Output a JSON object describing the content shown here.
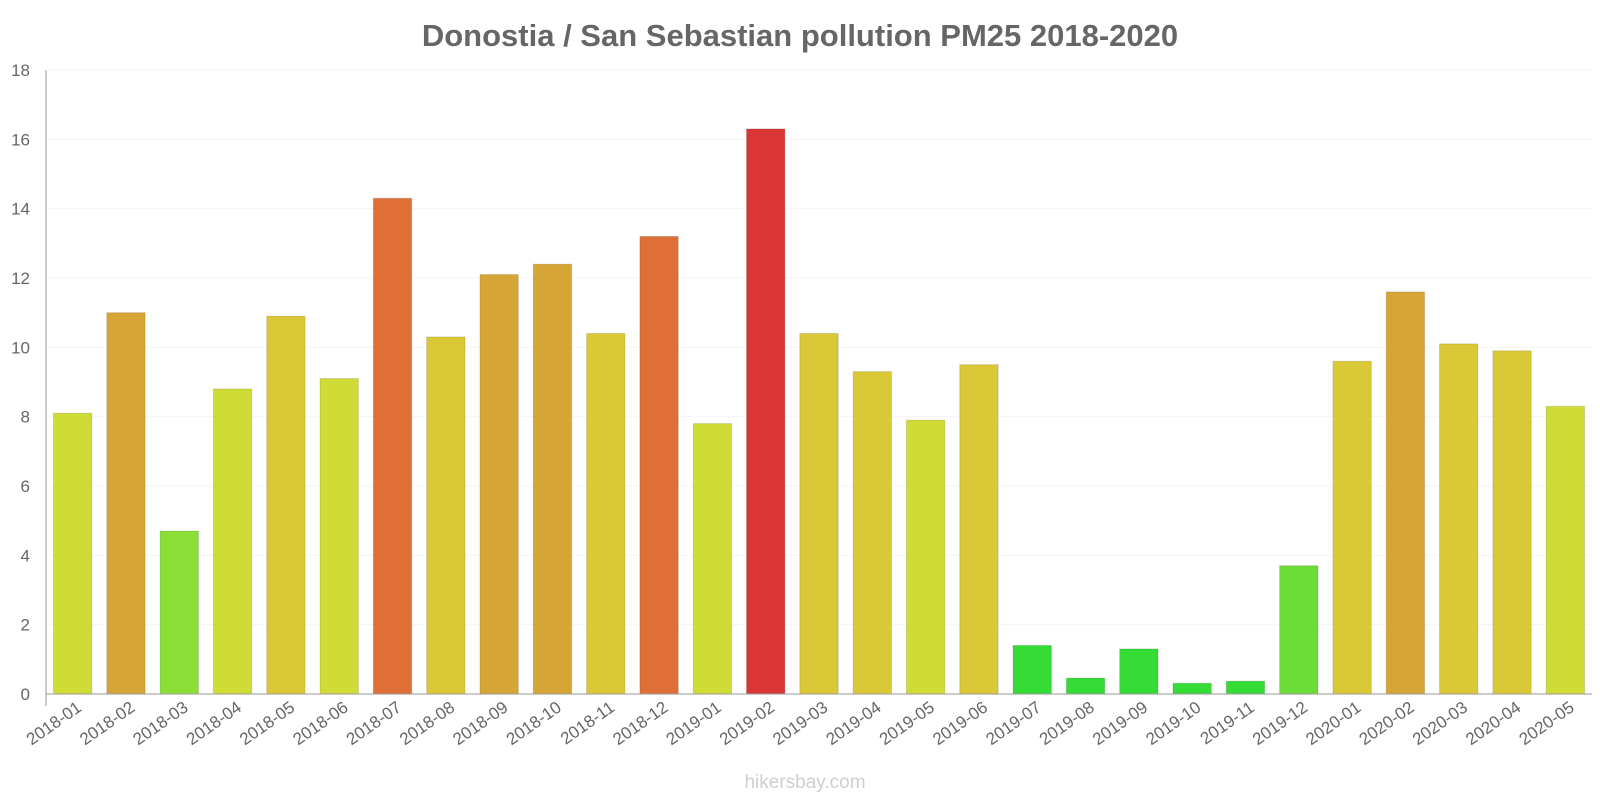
{
  "chart_data": {
    "type": "bar",
    "title": "Donostia / San Sebastian pollution PM25 2018-2020",
    "xlabel": "",
    "ylabel": "",
    "ylim": [
      0,
      18
    ],
    "yticks": [
      0,
      2,
      4,
      6,
      8,
      10,
      12,
      14,
      16,
      18
    ],
    "grid": true,
    "legend": "none",
    "categories": [
      "2018-01",
      "2018-02",
      "2018-03",
      "2018-04",
      "2018-05",
      "2018-06",
      "2018-07",
      "2018-08",
      "2018-09",
      "2018-10",
      "2018-11",
      "2018-12",
      "2019-01",
      "2019-02",
      "2019-03",
      "2019-04",
      "2019-05",
      "2019-06",
      "2019-07",
      "2019-08",
      "2019-09",
      "2019-10",
      "2019-11",
      "2019-12",
      "2020-01",
      "2020-02",
      "2020-03",
      "2020-04",
      "2020-05"
    ],
    "values": [
      8.1,
      11,
      4.7,
      8.8,
      10.9,
      9.1,
      14.3,
      10.3,
      12.1,
      12.4,
      10.4,
      13.2,
      7.8,
      16.3,
      10.4,
      9.3,
      7.9,
      9.5,
      1.4,
      0.46,
      1.3,
      0.31,
      0.37,
      3.7,
      9.6,
      11.6,
      10.1,
      9.9,
      8.3
    ],
    "colors": [
      "#cfdc36",
      "#d7a536",
      "#8ade36",
      "#cfdc36",
      "#dbc836",
      "#cfdc36",
      "#df6f36",
      "#dbc836",
      "#d7a536",
      "#d7a536",
      "#dbc836",
      "#df6f36",
      "#cfdc36",
      "#db3636",
      "#dbc836",
      "#dbc836",
      "#cfdc36",
      "#dbc836",
      "#36dc36",
      "#36dc36",
      "#36dc36",
      "#36dc36",
      "#36dc36",
      "#6cdc36",
      "#dbc836",
      "#d7a536",
      "#dbc836",
      "#dbc836",
      "#cfdc36"
    ]
  },
  "watermark": "hikersbay.com"
}
